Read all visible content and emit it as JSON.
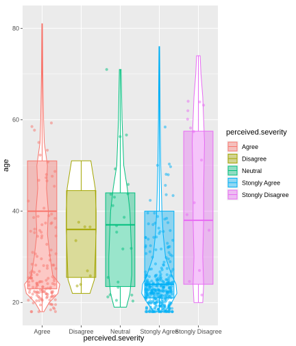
{
  "chart_data": {
    "type": "violin-boxplot-jitter",
    "xlabel": "perceived.severity",
    "ylabel": "age",
    "ylim": [
      15,
      85
    ],
    "yticks": [
      20,
      40,
      60,
      80
    ],
    "categories": [
      "Agree",
      "Disagree",
      "Neutral",
      "Stongly Agree",
      "Stongly Disagree"
    ],
    "legend": {
      "title": "perceived.severity",
      "position": "right"
    },
    "series": [
      {
        "name": "Agree",
        "color": "#F8766D",
        "box": {
          "min": 18,
          "q1": 23,
          "median": 40,
          "q3": 51,
          "max": 81
        }
      },
      {
        "name": "Disagree",
        "color": "#A3A500",
        "box": {
          "min": 22,
          "q1": 25.5,
          "median": 36,
          "q3": 44.5,
          "max": 51
        }
      },
      {
        "name": "Neutral",
        "color": "#00BF7D",
        "box": {
          "min": 19,
          "q1": 23.5,
          "median": 37,
          "q3": 44,
          "max": 71
        }
      },
      {
        "name": "Stongly Agree",
        "color": "#00B0F6",
        "box": {
          "min": 18,
          "q1": 21,
          "median": 24,
          "q3": 40,
          "max": 76
        }
      },
      {
        "name": "Stongly Disagree",
        "color": "#E76BF3",
        "box": {
          "min": 20,
          "q1": 24,
          "median": 38,
          "q3": 57.5,
          "max": 74
        }
      }
    ]
  }
}
